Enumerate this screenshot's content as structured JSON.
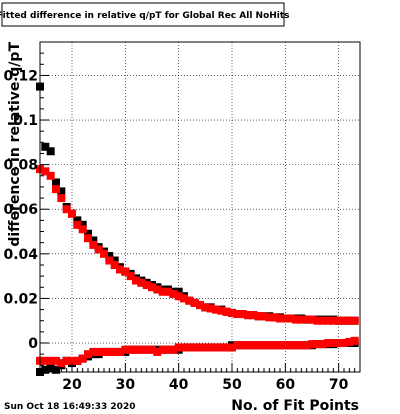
{
  "title": "Fitted difference in relative q/pT  for Global Rec All NoHits",
  "timestamp": "Sun Oct 18 16:49:33 2020",
  "chart_data": {
    "type": "scatter",
    "title": "Fitted difference in relative q/pT  for Global Rec All NoHits",
    "xlabel": "No. of Fit Points",
    "ylabel": "difference in relative q/pT",
    "xlim": [
      14,
      74
    ],
    "ylim": [
      -0.013,
      0.135
    ],
    "grid": true,
    "legend": "none",
    "x_ticks": [
      20,
      30,
      40,
      50,
      60,
      70
    ],
    "x_tick_labels": [
      "20",
      "30",
      "40",
      "50",
      "60",
      "70"
    ],
    "y_ticks": [
      0,
      0.02,
      0.04,
      0.06,
      0.08,
      0.1,
      0.12
    ],
    "y_tick_labels": [
      "0",
      "0.02",
      "0.04",
      "0.06",
      "0.08",
      "0.1",
      "0.12"
    ],
    "series": [
      {
        "color": "#000000",
        "x": [
          14,
          15,
          16,
          17,
          18,
          19,
          20,
          21,
          22,
          23,
          24,
          25,
          26,
          27,
          28,
          29,
          30,
          31,
          32,
          33,
          34,
          35,
          36,
          37,
          38,
          39,
          40,
          41,
          42,
          43,
          44,
          45,
          46,
          47,
          48,
          49,
          50,
          51,
          52,
          53,
          54,
          55,
          56,
          57,
          58,
          59,
          60,
          61,
          62,
          63,
          64,
          65,
          66,
          67,
          68,
          69,
          70,
          71,
          72,
          73
        ],
        "values": [
          0.115,
          0.088,
          0.086,
          0.072,
          0.068,
          0.061,
          0.058,
          0.055,
          0.053,
          0.049,
          0.046,
          0.043,
          0.041,
          0.039,
          0.037,
          0.034,
          0.032,
          0.031,
          0.029,
          0.028,
          0.027,
          0.026,
          0.025,
          0.024,
          0.024,
          0.023,
          0.023,
          0.021,
          0.019,
          0.018,
          0.017,
          0.016,
          0.016,
          0.015,
          0.015,
          0.014,
          0.0135,
          0.013,
          0.013,
          0.0125,
          0.0125,
          0.012,
          0.012,
          0.012,
          0.0115,
          0.0115,
          0.011,
          0.011,
          0.011,
          0.011,
          0.0105,
          0.0105,
          0.0105,
          0.0105,
          0.0105,
          0.0105,
          0.01,
          0.01,
          0.01,
          0.01
        ]
      },
      {
        "color": "#000000",
        "x": [
          14,
          15,
          16,
          17,
          18,
          19,
          20,
          21,
          22,
          23,
          24,
          25,
          26,
          27,
          28,
          29,
          30,
          31,
          32,
          33,
          34,
          35,
          36,
          37,
          38,
          39,
          40,
          41,
          42,
          43,
          44,
          45,
          46,
          47,
          48,
          49,
          50,
          51,
          52,
          53,
          54,
          55,
          56,
          57,
          58,
          59,
          60,
          61,
          62,
          63,
          64,
          65,
          66,
          67,
          68,
          69,
          70,
          71,
          72,
          73
        ],
        "values": [
          -0.013,
          -0.012,
          -0.011,
          -0.012,
          -0.01,
          -0.008,
          -0.009,
          -0.008,
          -0.007,
          -0.006,
          -0.005,
          -0.005,
          -0.004,
          -0.004,
          -0.004,
          -0.004,
          -0.004,
          -0.003,
          -0.003,
          -0.003,
          -0.003,
          -0.003,
          -0.003,
          -0.003,
          -0.003,
          -0.003,
          -0.003,
          -0.002,
          -0.002,
          -0.002,
          -0.002,
          -0.002,
          -0.002,
          -0.002,
          -0.002,
          -0.002,
          -0.001,
          -0.001,
          -0.001,
          -0.001,
          -0.001,
          -0.001,
          -0.001,
          -0.001,
          -0.001,
          -0.001,
          -0.001,
          -0.001,
          -0.001,
          -0.001,
          -0.001,
          -0.001,
          -0.0005,
          -0.0005,
          -0.0005,
          -0.0005,
          0,
          0,
          0,
          0
        ]
      },
      {
        "color": "#ff0000",
        "x": [
          14,
          15,
          16,
          17,
          18,
          19,
          20,
          21,
          22,
          23,
          24,
          25,
          26,
          27,
          28,
          29,
          30,
          31,
          32,
          33,
          34,
          35,
          36,
          37,
          38,
          39,
          40,
          41,
          42,
          43,
          44,
          45,
          46,
          47,
          48,
          49,
          50,
          51,
          52,
          53,
          54,
          55,
          56,
          57,
          58,
          59,
          60,
          61,
          62,
          63,
          64,
          65,
          66,
          67,
          68,
          69,
          70,
          71,
          72,
          73
        ],
        "values": [
          0.078,
          0.077,
          0.075,
          0.069,
          0.065,
          0.06,
          0.058,
          0.053,
          0.051,
          0.047,
          0.044,
          0.042,
          0.04,
          0.037,
          0.035,
          0.033,
          0.032,
          0.03,
          0.028,
          0.027,
          0.026,
          0.025,
          0.024,
          0.023,
          0.023,
          0.022,
          0.021,
          0.02,
          0.019,
          0.018,
          0.017,
          0.016,
          0.0155,
          0.015,
          0.0145,
          0.014,
          0.0135,
          0.013,
          0.013,
          0.0125,
          0.0125,
          0.012,
          0.012,
          0.0115,
          0.0115,
          0.011,
          0.011,
          0.011,
          0.0105,
          0.0105,
          0.0105,
          0.0105,
          0.01,
          0.01,
          0.01,
          0.01,
          0.01,
          0.01,
          0.01,
          0.01
        ]
      },
      {
        "color": "#ff0000",
        "x": [
          14,
          15,
          16,
          17,
          18,
          19,
          20,
          21,
          22,
          23,
          24,
          25,
          26,
          27,
          28,
          29,
          30,
          31,
          32,
          33,
          34,
          35,
          36,
          37,
          38,
          39,
          40,
          41,
          42,
          43,
          44,
          45,
          46,
          47,
          48,
          49,
          50,
          51,
          52,
          53,
          54,
          55,
          56,
          57,
          58,
          59,
          60,
          61,
          62,
          63,
          64,
          65,
          66,
          67,
          68,
          69,
          70,
          71,
          72,
          73
        ],
        "values": [
          -0.008,
          -0.008,
          -0.008,
          -0.008,
          -0.009,
          -0.008,
          -0.008,
          -0.008,
          -0.007,
          -0.005,
          -0.004,
          -0.004,
          -0.004,
          -0.004,
          -0.004,
          -0.004,
          -0.003,
          -0.003,
          -0.003,
          -0.003,
          -0.003,
          -0.003,
          -0.004,
          -0.003,
          -0.003,
          -0.003,
          -0.002,
          -0.002,
          -0.002,
          -0.002,
          -0.002,
          -0.002,
          -0.002,
          -0.002,
          -0.002,
          -0.002,
          -0.002,
          -0.001,
          -0.001,
          -0.001,
          -0.001,
          -0.001,
          -0.001,
          -0.001,
          -0.001,
          -0.001,
          -0.001,
          -0.001,
          -0.001,
          -0.001,
          -0.001,
          -0.0005,
          -0.0005,
          -0.0005,
          0,
          0,
          0,
          0,
          0.0005,
          0.001
        ]
      }
    ]
  }
}
